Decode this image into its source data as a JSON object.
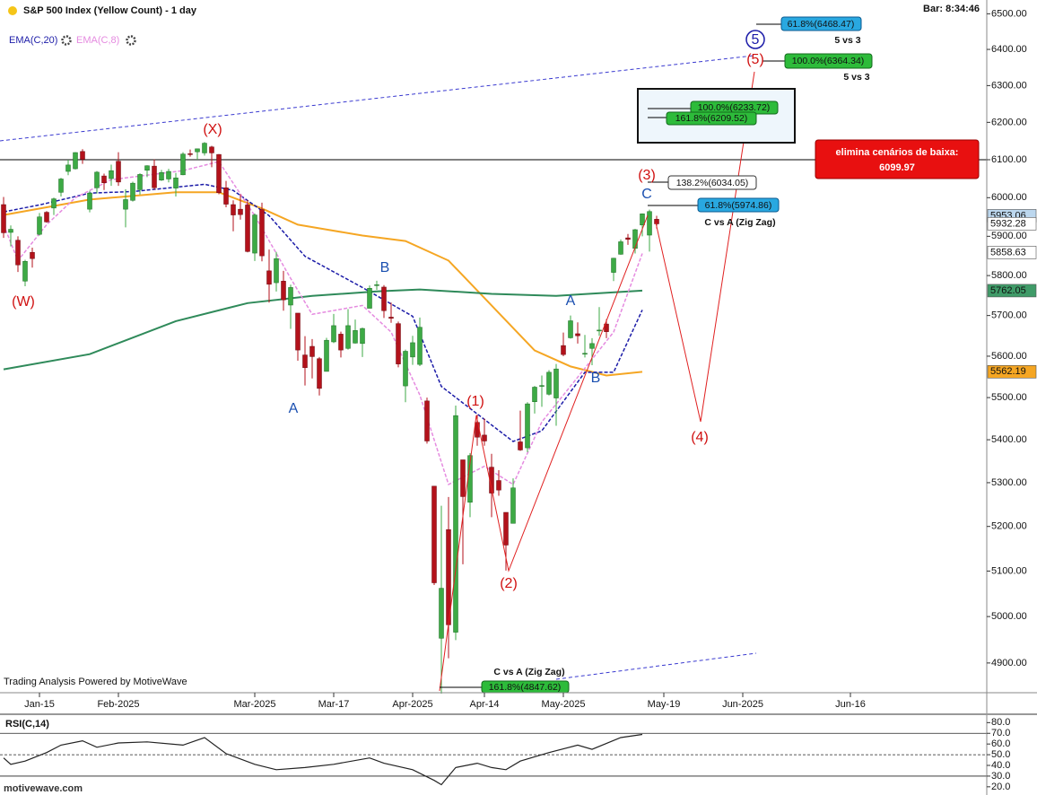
{
  "header": {
    "title": "S&P 500 Index (Yellow Count) - 1 day",
    "bar_time": "Bar: 8:34:46",
    "indicators": [
      "EMA(C,20)",
      "EMA(C,8)"
    ]
  },
  "chart_data": [
    {
      "type": "candlestick",
      "xlim": [
        -0.5,
        137
      ],
      "xticks": [
        {
          "value": 5,
          "label": "Jan-15"
        },
        {
          "value": 16,
          "label": "Feb-2025"
        },
        {
          "value": 35,
          "label": "Mar-2025"
        },
        {
          "value": 46,
          "label": "Mar-17"
        },
        {
          "value": 57,
          "label": "Apr-2025"
        },
        {
          "value": 67,
          "label": "Apr-14"
        },
        {
          "value": 78,
          "label": "May-2025"
        },
        {
          "value": 92,
          "label": "May-19"
        },
        {
          "value": 103,
          "label": "Jun-2025"
        },
        {
          "value": 118,
          "label": "Jun-16"
        }
      ],
      "ylim": [
        4837,
        6534
      ],
      "log": true,
      "yticks": [
        {
          "value": 6500,
          "label": "6500.00"
        },
        {
          "value": 6400,
          "label": "6400.00"
        },
        {
          "value": 6300,
          "label": "6300.00"
        },
        {
          "value": 6200,
          "label": "6200.00"
        },
        {
          "value": 6100,
          "label": "6100.00"
        },
        {
          "value": 6000,
          "label": "6000.00"
        },
        {
          "value": 5900,
          "label": "5900.00"
        },
        {
          "value": 5800,
          "label": "5800.00"
        },
        {
          "value": 5700,
          "label": "5700.00"
        },
        {
          "value": 5600,
          "label": "5600.00"
        },
        {
          "value": 5500,
          "label": "5500.00"
        },
        {
          "value": 5400,
          "label": "5400.00"
        },
        {
          "value": 5300,
          "label": "5300.00"
        },
        {
          "value": 5200,
          "label": "5200.00"
        },
        {
          "value": 5100,
          "label": "5100.00"
        },
        {
          "value": 5000,
          "label": "5000.00"
        },
        {
          "value": 4900,
          "label": "4900.00"
        }
      ],
      "up_color": "#3daa45",
      "down_color": "#b3121b",
      "open": [
        5982,
        5910,
        5890,
        5786,
        5859,
        5905,
        5962,
        5973,
        6014,
        6069,
        6076,
        6122,
        5970,
        6026,
        6057,
        6050,
        6096,
        5970,
        5993,
        6021,
        6072,
        6083,
        6046,
        6049,
        6025,
        6060,
        6116,
        6121,
        6118,
        6134,
        6114,
        6026,
        5982,
        5970,
        5981,
        5857,
        5969,
        5812,
        5782,
        5786,
        5726,
        5706,
        5603,
        5624,
        5594,
        5563,
        5635,
        5654,
        5619,
        5632,
        5631,
        5718,
        5775,
        5771,
        5696,
        5680,
        5528,
        5598,
        5580,
        5492,
        5292,
        4953,
        5193,
        4966,
        5353,
        5255,
        5441,
        5411,
        5336,
        5305,
        5232,
        5207,
        5395,
        5381,
        5490,
        5529,
        5508,
        5499,
        5626,
        5645,
        5655,
        5606,
        5619,
        5663,
        5679,
        5808,
        5854,
        5896,
        5869,
        5929,
        5903,
        5944
      ],
      "high": [
        6002,
        5928,
        5900,
        5840,
        5871,
        5960,
        5965,
        6000,
        6052,
        6100,
        6120,
        6128,
        6018,
        6070,
        6063,
        6087,
        6120,
        6022,
        6042,
        6064,
        6085,
        6101,
        6073,
        6076,
        6065,
        6120,
        6127,
        6129,
        6147,
        6137,
        6115,
        6044,
        5993,
        6009,
        5994,
        5959,
        5987,
        5866,
        5860,
        5812,
        5777,
        5706,
        5649,
        5642,
        5598,
        5645,
        5704,
        5660,
        5716,
        5690,
        5670,
        5775,
        5787,
        5776,
        5732,
        5685,
        5616,
        5650,
        5695,
        5500,
        5292,
        5247,
        5267,
        5481,
        5353,
        5369,
        5459,
        5450,
        5367,
        5329,
        5232,
        5310,
        5469,
        5489,
        5528,
        5553,
        5566,
        5581,
        5658,
        5700,
        5683,
        5652,
        5644,
        5721,
        5691,
        5845,
        5892,
        5906,
        5919,
        5959,
        5969,
        5953
      ],
      "low": [
        5896,
        5874,
        5809,
        5773,
        5820,
        5902,
        5935,
        5955,
        6003,
        6059,
        6074,
        6089,
        5962,
        6011,
        6020,
        6031,
        6031,
        5923,
        5990,
        6008,
        6054,
        6021,
        6044,
        6040,
        6003,
        6059,
        6108,
        6100,
        6111,
        6080,
        6009,
        5975,
        5913,
        5943,
        5859,
        5837,
        5836,
        5732,
        5760,
        5712,
        5667,
        5589,
        5529,
        5546,
        5505,
        5563,
        5632,
        5597,
        5616,
        5631,
        5598,
        5718,
        5764,
        5694,
        5682,
        5573,
        5489,
        5579,
        5576,
        5391,
        5069,
        4835,
        4910,
        4949,
        5115,
        5221,
        5386,
        5386,
        5221,
        5270,
        5101,
        5207,
        5374,
        5371,
        5462,
        5478,
        5505,
        5433,
        5600,
        5643,
        5631,
        5597,
        5578,
        5650,
        5644,
        5786,
        5853,
        5878,
        5856,
        5900,
        5861,
        5920
      ],
      "close": [
        5909,
        5918,
        5827,
        5836,
        5843,
        5950,
        5937,
        5997,
        6049,
        6086,
        6119,
        6101,
        6012,
        6067,
        6039,
        6071,
        6041,
        5995,
        6038,
        6061,
        6084,
        6026,
        6066,
        6069,
        6052,
        6115,
        6115,
        6129,
        6144,
        6118,
        6013,
        5983,
        5955,
        5956,
        5861,
        5955,
        5850,
        5778,
        5843,
        5739,
        5770,
        5615,
        5572,
        5599,
        5522,
        5639,
        5675,
        5615,
        5675,
        5663,
        5668,
        5768,
        5777,
        5712,
        5693,
        5581,
        5612,
        5633,
        5671,
        5397,
        5074,
        5062,
        4982,
        5457,
        5268,
        5363,
        5406,
        5397,
        5276,
        5283,
        5158,
        5288,
        5376,
        5485,
        5525,
        5529,
        5561,
        5569,
        5604,
        5687,
        5650,
        5607,
        5631,
        5664,
        5660,
        5844,
        5886,
        5892,
        5917,
        5958,
        5964,
        5932
      ],
      "series": [
        {
          "color": "#f5a623",
          "width": 2,
          "x": [
            0,
            12,
            24,
            30,
            36,
            41,
            50,
            56,
            62,
            68,
            74,
            79,
            84,
            89
          ],
          "values": [
            5955,
            5995,
            6014,
            6014,
            5972,
            5930,
            5902,
            5888,
            5838,
            5725,
            5614,
            5575,
            5553,
            5562
          ]
        },
        {
          "color": "#2f8a5a",
          "width": 2,
          "x": [
            0,
            12,
            24,
            34,
            43,
            52,
            58,
            68,
            77,
            89
          ],
          "values": [
            5568,
            5605,
            5686,
            5731,
            5749,
            5760,
            5765,
            5754,
            5749,
            5762
          ]
        },
        {
          "name": "EMA(C,20)",
          "color": "#1c1ca8",
          "dash": true,
          "width": 1.5,
          "x": [
            0,
            5,
            12,
            18,
            28,
            32,
            37,
            42,
            50,
            57,
            61,
            65,
            71,
            75,
            81,
            85,
            89
          ],
          "values": [
            5963,
            5981,
            6012,
            6016,
            6035,
            6019,
            5953,
            5849,
            5770,
            5698,
            5527,
            5474,
            5396,
            5421,
            5561,
            5561,
            5714
          ]
        },
        {
          "name": "EMA(C,8)",
          "color": "#e58be0",
          "dash": true,
          "width": 1.5,
          "x": [
            0,
            2,
            6,
            10,
            15,
            25,
            30,
            35,
            40,
            43,
            50,
            54,
            58,
            62,
            67,
            71,
            75,
            80,
            85,
            89
          ],
          "values": [
            5930,
            5838,
            5930,
            6000,
            6047,
            6071,
            6095,
            5953,
            5793,
            5703,
            5725,
            5659,
            5506,
            5296,
            5338,
            5296,
            5442,
            5549,
            5659,
            5856
          ]
        }
      ],
      "price_tags": [
        {
          "value": 5953.06,
          "color": "#bcd7ee"
        },
        {
          "value": 5932.28,
          "color": "#ffffff"
        },
        {
          "value": 5858.63,
          "color": "#ffffff"
        },
        {
          "value": 5762.05,
          "color": "#3f9b68"
        },
        {
          "value": 5562.19,
          "color": "#f5a623"
        }
      ],
      "threshold": {
        "text": "elimina cenários de baixa:",
        "value": 6099.97
      }
    },
    {
      "type": "line",
      "title": "RSI(C,14)",
      "xlim": [
        -0.5,
        137
      ],
      "ylim": [
        14,
        87
      ],
      "yticks": [
        {
          "value": 80,
          "label": "80.0"
        },
        {
          "value": 70,
          "label": "70.0"
        },
        {
          "value": 60,
          "label": "60.0"
        },
        {
          "value": 50,
          "label": "50.0"
        },
        {
          "value": 40,
          "label": "40.0"
        },
        {
          "value": 30,
          "label": "30.0"
        },
        {
          "value": 20,
          "label": "20.0"
        }
      ],
      "levels": [
        70,
        50,
        30
      ],
      "series": [
        {
          "color": "#222222",
          "x": [
            0,
            1,
            3,
            6,
            8,
            11,
            13,
            16,
            20,
            25,
            28,
            31,
            35,
            38,
            42,
            46,
            51,
            53,
            57,
            60,
            61,
            63,
            66,
            68,
            70,
            72,
            76,
            80,
            82,
            86,
            89
          ],
          "values": [
            47,
            41,
            44,
            52,
            59,
            63,
            57,
            61,
            62,
            59,
            66,
            51,
            41,
            36,
            38,
            41,
            47,
            42,
            36,
            26,
            22,
            38,
            42,
            38,
            36,
            44,
            52,
            59,
            55,
            66,
            69
          ]
        }
      ]
    }
  ],
  "annotations": [
    "61.8%(6468.47)",
    "5 vs 3",
    "100.0%(6364.34)",
    "5 vs 3",
    "100.0%(6233.72)",
    "161.8%(6209.52)",
    "138.2%(6034.05)",
    "61.8%(5974.86)",
    "C vs A (Zig Zag)",
    "C vs A (Zig Zag)",
    "161.8%(4847.62)"
  ],
  "wave_labels": [
    "(W)",
    "(X)",
    "A",
    "B",
    "A",
    "B",
    "C",
    "(1)",
    "(2)",
    "(3)",
    "(4)",
    "(5)",
    "5"
  ],
  "footer": {
    "credit": "Trading Analysis Powered by MotiveWave",
    "site": "motivewave.com"
  }
}
